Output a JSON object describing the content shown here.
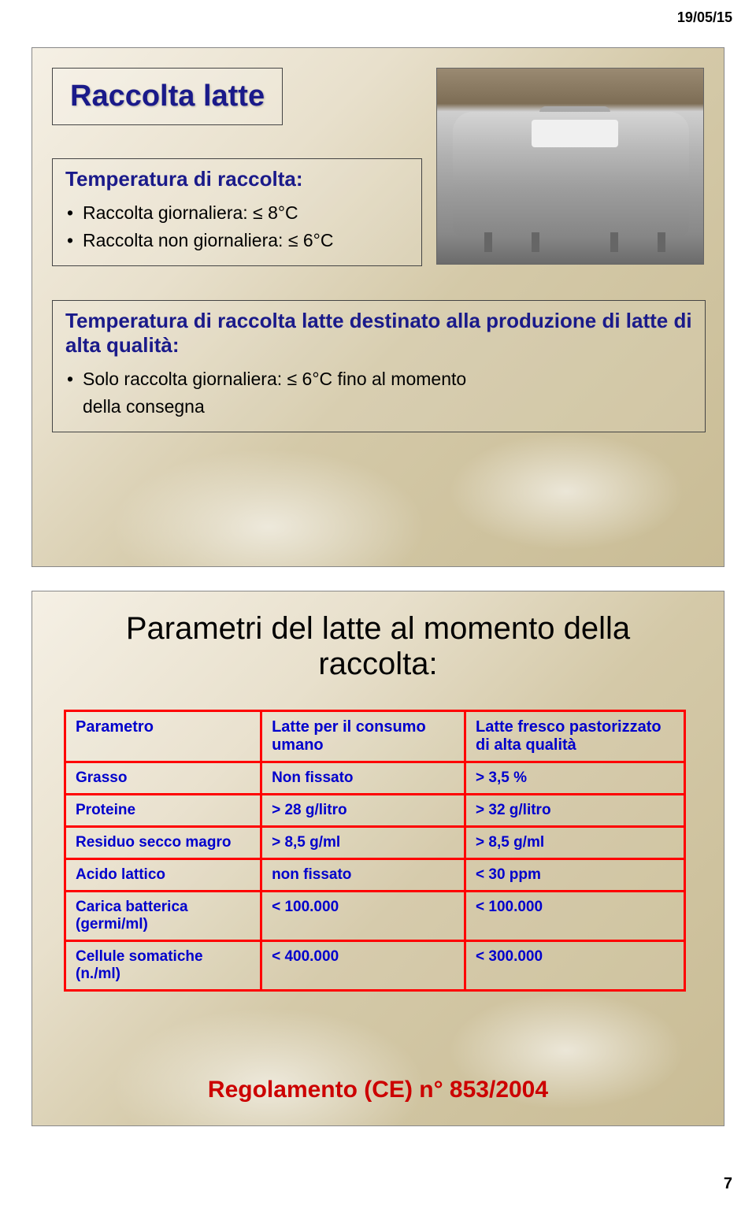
{
  "header_date": "19/05/15",
  "page_number": "7",
  "slide1": {
    "title": "Raccolta latte",
    "box1": {
      "heading": "Temperatura di raccolta:",
      "items": [
        "Raccolta giornaliera: ≤ 8°C",
        "Raccolta non giornaliera: ≤ 6°C"
      ]
    },
    "box2": {
      "heading": "Temperatura di raccolta latte destinato alla produzione di latte di alta qualità:",
      "items": [
        "Solo raccolta giornaliera: ≤ 6°C fino al momento",
        "della   consegna"
      ]
    }
  },
  "slide2": {
    "title": "Parametri del latte al momento della raccolta:",
    "table": {
      "columns": [
        "Parametro",
        "Latte per il consumo umano",
        "Latte fresco pastorizzato di alta qualità"
      ],
      "rows": [
        [
          "Grasso",
          "Non fissato",
          "> 3,5 %"
        ],
        [
          "Proteine",
          "> 28 g/litro",
          "> 32 g/litro"
        ],
        [
          "Residuo secco magro",
          "> 8,5 g/ml",
          "> 8,5 g/ml"
        ],
        [
          "Acido lattico",
          "non fissato",
          "< 30 ppm"
        ],
        [
          "Carica batterica (germi/ml)",
          "< 100.000",
          "< 100.000"
        ],
        [
          "Cellule somatiche (n./ml)",
          "< 400.000",
          "< 300.000"
        ]
      ]
    },
    "regulation": "Regolamento (CE) n° 853/2004"
  }
}
